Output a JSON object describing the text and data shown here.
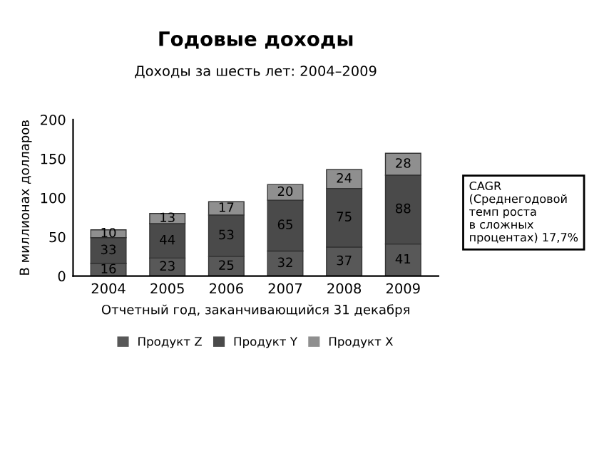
{
  "chart_data": {
    "type": "bar",
    "stacked": true,
    "title": "Годовые доходы",
    "subtitle": "Доходы за шесть лет: 2004–2009",
    "xlabel": "Отчетный год, заканчивающийся 31 декабря",
    "ylabel": "В миллионах долларов",
    "categories": [
      "2004",
      "2005",
      "2006",
      "2007",
      "2008",
      "2009"
    ],
    "series": [
      {
        "name": "Продукт Z",
        "color": "#585858",
        "values": [
          16,
          23,
          25,
          32,
          37,
          41
        ]
      },
      {
        "name": "Продукт Y",
        "color": "#4a4a4a",
        "values": [
          33,
          44,
          53,
          65,
          75,
          88
        ]
      },
      {
        "name": "Продукт X",
        "color": "#8f8f8f",
        "values": [
          10,
          13,
          17,
          20,
          24,
          28
        ]
      }
    ],
    "ylim": [
      0,
      200
    ],
    "yticks": [
      0,
      50,
      100,
      150,
      200
    ],
    "grid": false,
    "legend": "bottom",
    "data_labels": true,
    "annotations": [
      "CAGR\n(Среднегодовой\nтемп роста\nв сложных\nпроцентах) 17,7%"
    ]
  }
}
